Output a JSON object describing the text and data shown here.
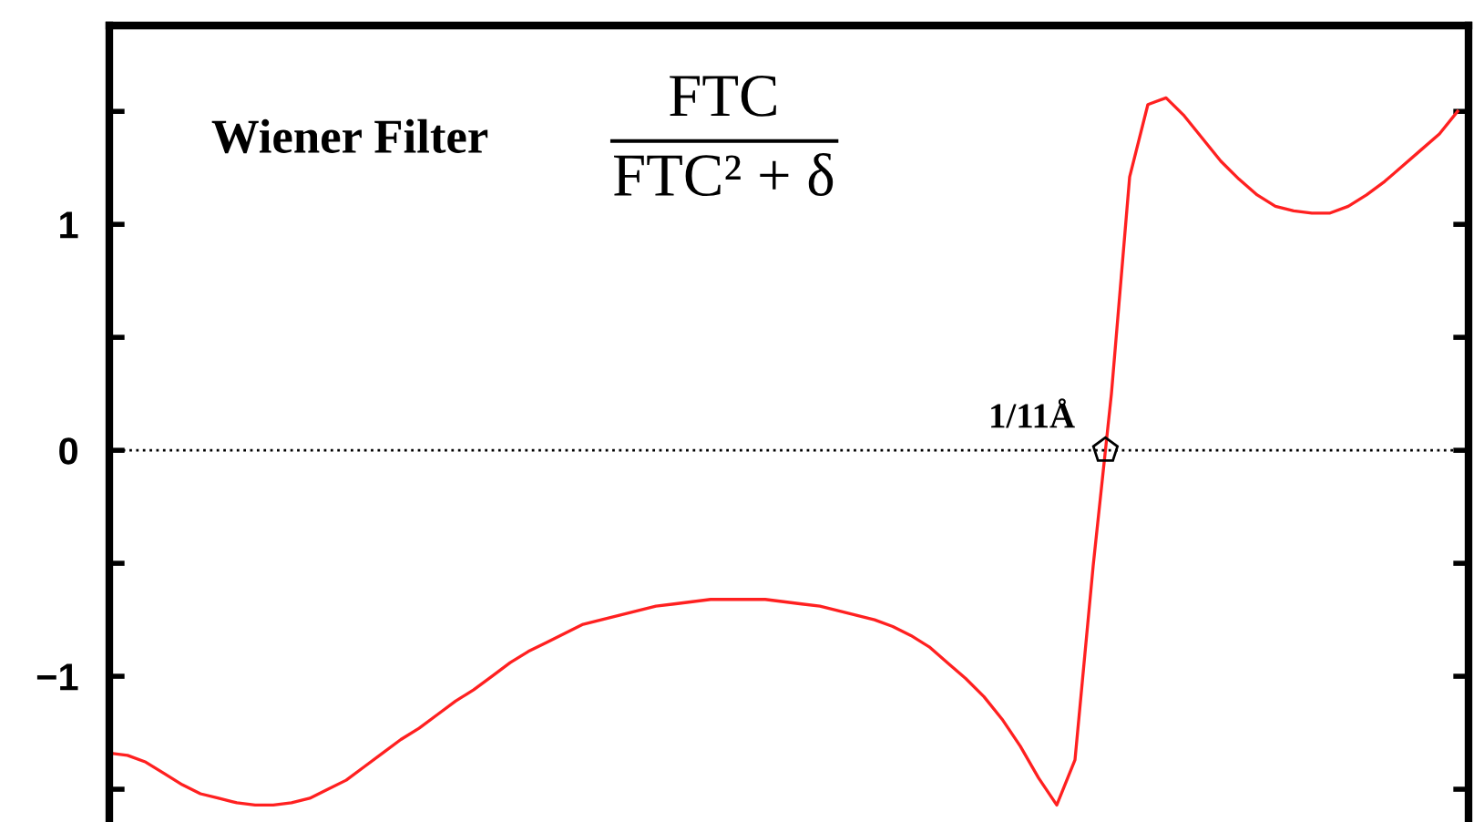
{
  "chart_data": {
    "type": "line",
    "title": "Wiener Filter",
    "annotations": [
      "FTC",
      "FTC² + δ",
      {
        "text": "1/11Å",
        "y": 0
      }
    ],
    "categories": [
      null,
      null,
      null,
      null,
      null,
      null,
      null,
      null,
      null,
      null,
      null,
      null,
      null,
      null,
      null,
      null,
      null,
      null,
      null,
      null,
      null,
      null,
      null,
      null,
      null,
      null,
      null,
      null,
      null,
      null,
      null,
      null,
      null,
      null,
      null,
      null,
      null,
      null,
      null,
      null,
      null,
      null,
      null,
      null,
      null,
      null,
      null,
      null,
      null,
      null,
      null,
      null,
      null,
      null,
      null,
      null,
      null,
      null,
      null,
      null,
      null,
      null,
      null,
      null,
      null,
      null,
      null,
      null,
      null,
      null,
      null,
      null,
      null,
      null,
      null
    ],
    "series": [
      {
        "color": "#ff2020",
        "values": [
          -1.34,
          -1.35,
          -1.38,
          -1.43,
          -1.48,
          -1.52,
          -1.54,
          -1.56,
          -1.57,
          -1.57,
          -1.56,
          -1.54,
          -1.5,
          -1.46,
          -1.4,
          -1.34,
          -1.28,
          -1.23,
          -1.17,
          -1.11,
          -1.06,
          -1.0,
          -0.94,
          -0.89,
          -0.85,
          -0.81,
          -0.77,
          -0.75,
          -0.73,
          -0.71,
          -0.69,
          -0.68,
          -0.67,
          -0.66,
          -0.66,
          -0.66,
          -0.66,
          -0.67,
          -0.68,
          -0.69,
          -0.71,
          -0.73,
          -0.75,
          -0.78,
          -0.82,
          -0.87,
          -0.94,
          -1.01,
          -1.09,
          -1.19,
          -1.31,
          -1.45,
          -1.57,
          -1.37,
          -0.51,
          0.25,
          1.21,
          1.53,
          1.56,
          1.48,
          1.38,
          1.28,
          1.2,
          1.13,
          1.08,
          1.06,
          1.05,
          1.05,
          1.08,
          1.13,
          1.19,
          1.26,
          1.33,
          1.4,
          1.5
        ]
      }
    ],
    "ylim": [
      -1.645,
      1.88
    ],
    "yticks": [
      {
        "value": -1.5,
        "label": null
      },
      -1,
      {
        "value": -0.5,
        "label": null
      },
      0,
      {
        "value": 0.5,
        "label": null
      },
      1,
      {
        "value": 1.5,
        "label": null
      }
    ],
    "ref_lines": [
      {
        "axis": "y",
        "value": 0,
        "color": "#000000",
        "line_style": "dotted"
      }
    ],
    "grid": false,
    "legend": false,
    "marker": "none",
    "line_style": "solid"
  }
}
